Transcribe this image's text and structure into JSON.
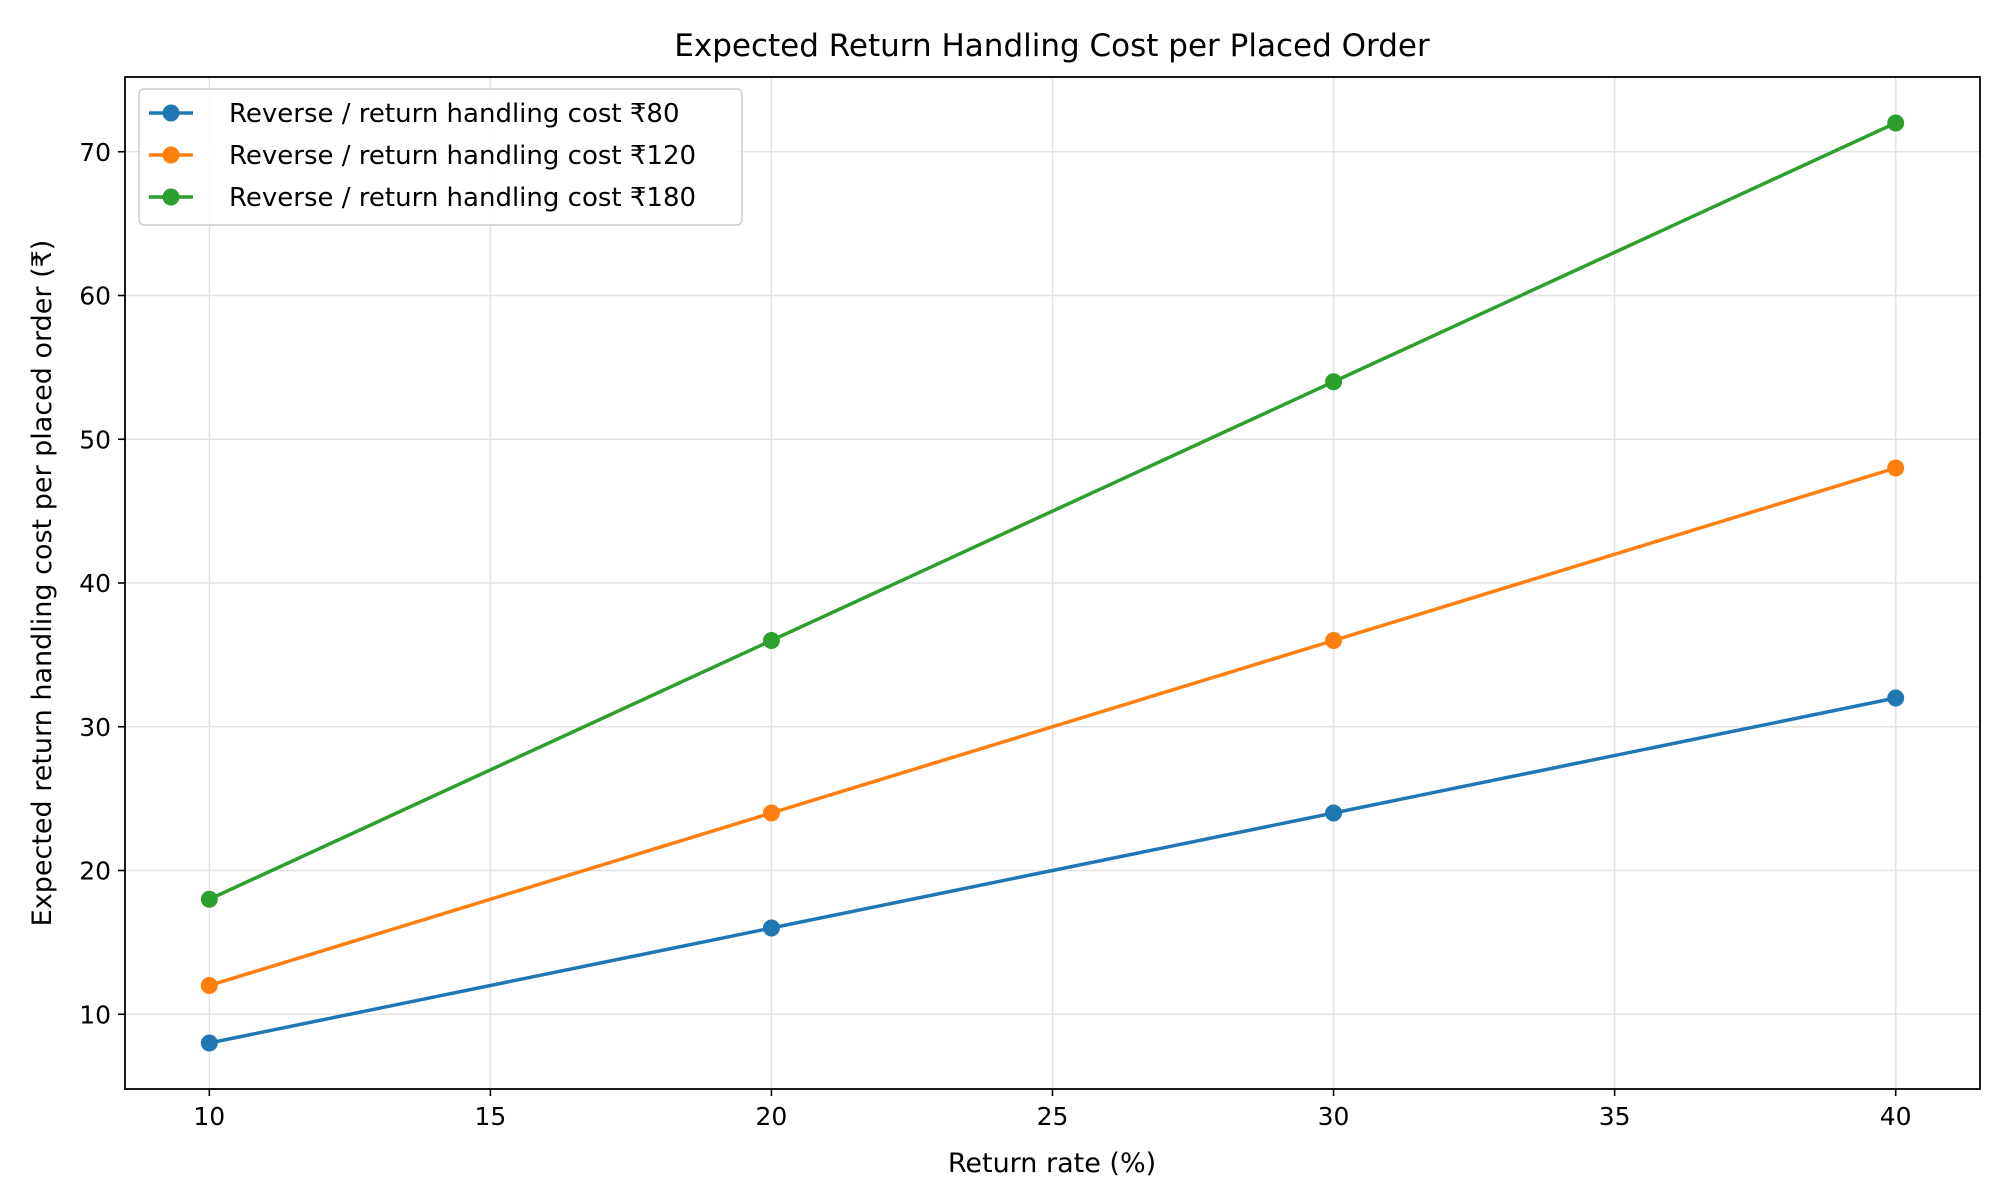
{
  "chart_data": {
    "type": "line",
    "title": "Expected Return Handling Cost per Placed Order",
    "xlabel": "Return rate (%)",
    "ylabel": "Expected return handling cost per placed order (₹)",
    "x": [
      10,
      20,
      30,
      40
    ],
    "xlim": [
      8.5,
      41.5
    ],
    "ylim": [
      4.8,
      75.2
    ],
    "xticks": [
      10,
      15,
      20,
      25,
      30,
      35,
      40
    ],
    "yticks": [
      10,
      20,
      30,
      40,
      50,
      60,
      70
    ],
    "grid": true,
    "legend_position": "top-left",
    "series": [
      {
        "name": "Reverse / return handling cost ₹80",
        "color": "#1f77b4",
        "values": [
          8,
          16,
          24,
          32
        ]
      },
      {
        "name": "Reverse / return handling cost ₹120",
        "color": "#ff7f0e",
        "values": [
          12,
          24,
          36,
          48
        ]
      },
      {
        "name": "Reverse / return handling cost ₹180",
        "color": "#2ca02c",
        "values": [
          18,
          36,
          54,
          72
        ]
      }
    ]
  }
}
